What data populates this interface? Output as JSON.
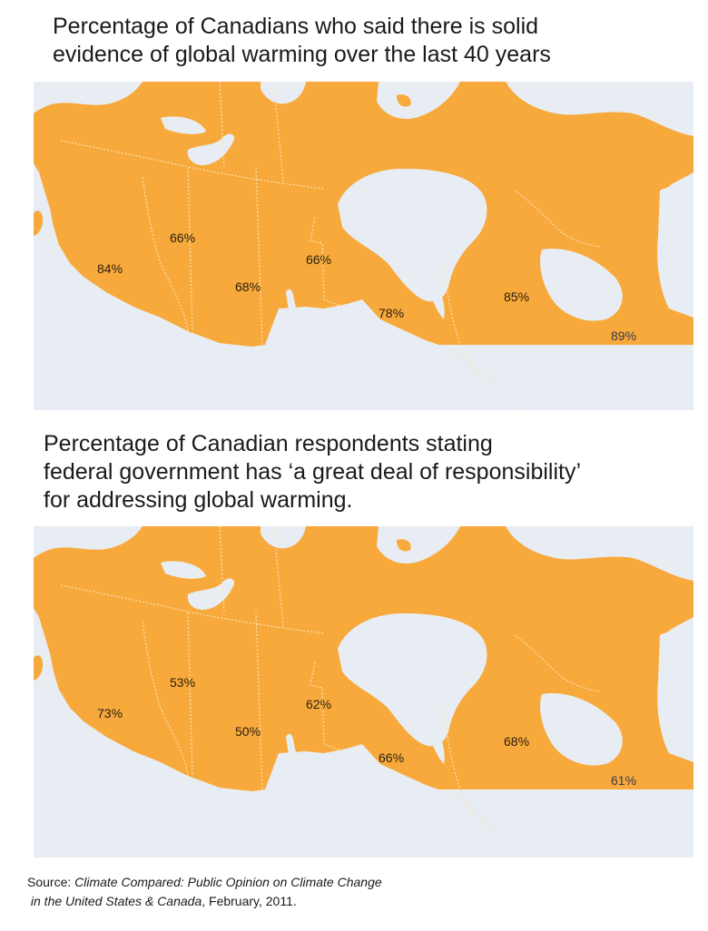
{
  "map1": {
    "title_line1": "Percentage of Canadians who said there is solid",
    "title_line2": "evidence of global warming over the last 40 years",
    "regions": [
      {
        "region": "British Columbia",
        "value": "84%"
      },
      {
        "region": "Alberta",
        "value": "66%"
      },
      {
        "region": "Saskatchewan",
        "value": "68%"
      },
      {
        "region": "Manitoba",
        "value": "66%"
      },
      {
        "region": "Ontario",
        "value": "78%"
      },
      {
        "region": "Quebec",
        "value": "85%"
      },
      {
        "region": "Atlantic",
        "value": "89%"
      }
    ]
  },
  "map2": {
    "title_line1": "Percentage of Canadian respondents stating",
    "title_line2": "federal government has ‘a great deal of responsibility’",
    "title_line3": "for addressing global warming.",
    "regions": [
      {
        "region": "British Columbia",
        "value": "73%"
      },
      {
        "region": "Alberta",
        "value": "53%"
      },
      {
        "region": "Saskatchewan",
        "value": "50%"
      },
      {
        "region": "Manitoba",
        "value": "62%"
      },
      {
        "region": "Ontario",
        "value": "66%"
      },
      {
        "region": "Quebec",
        "value": "68%"
      },
      {
        "region": "Atlantic",
        "value": "61%"
      }
    ]
  },
  "source": {
    "prefix": "Source: ",
    "title_italic_1": "Climate Compared: Public Opinion on Climate Change",
    "title_italic_2": "in the United States & Canada",
    "suffix": ", February, 2011."
  },
  "colors": {
    "land": "#f7a93b",
    "water": "#e8edf3",
    "border": "#fde2b4"
  }
}
